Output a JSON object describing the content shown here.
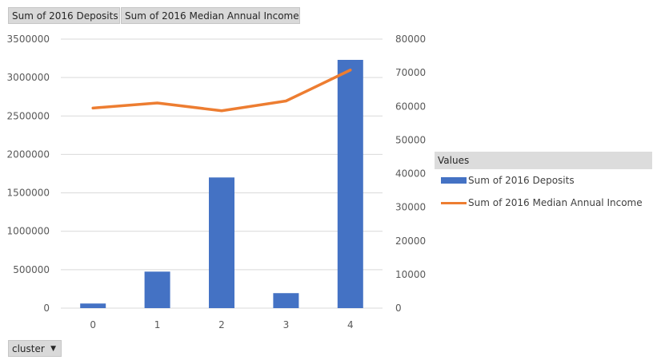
{
  "field_buttons": {
    "deposits": "Sum of 2016 Deposits",
    "income": "Sum of 2016 Median Annual Income"
  },
  "axis_button": {
    "label": "cluster"
  },
  "legend": {
    "title": "Values"
  },
  "colors": {
    "bar": "#4472c4",
    "line": "#ed7d31",
    "grid": "#d9d9d9"
  },
  "chart_data": {
    "type": "bar",
    "categories": [
      "0",
      "1",
      "2",
      "3",
      "4"
    ],
    "series": [
      {
        "name": "Sum of 2016 Deposits",
        "type": "bar",
        "axis": "left",
        "values": [
          60000,
          475000,
          1700000,
          195000,
          3230000
        ]
      },
      {
        "name": "Sum of 2016 Median Annual Income",
        "type": "line",
        "axis": "right",
        "values": [
          59500,
          61000,
          58700,
          61600,
          70800
        ]
      }
    ],
    "ylim_left": [
      0,
      3500000
    ],
    "yticks_left": [
      "0",
      "500000",
      "1000000",
      "1500000",
      "2000000",
      "2500000",
      "3000000",
      "3500000"
    ],
    "ylim_right": [
      0,
      80000
    ],
    "yticks_right": [
      "0",
      "10000",
      "20000",
      "30000",
      "40000",
      "50000",
      "60000",
      "70000",
      "80000"
    ],
    "xlabel": "cluster",
    "grid": true,
    "legend_position": "right"
  }
}
